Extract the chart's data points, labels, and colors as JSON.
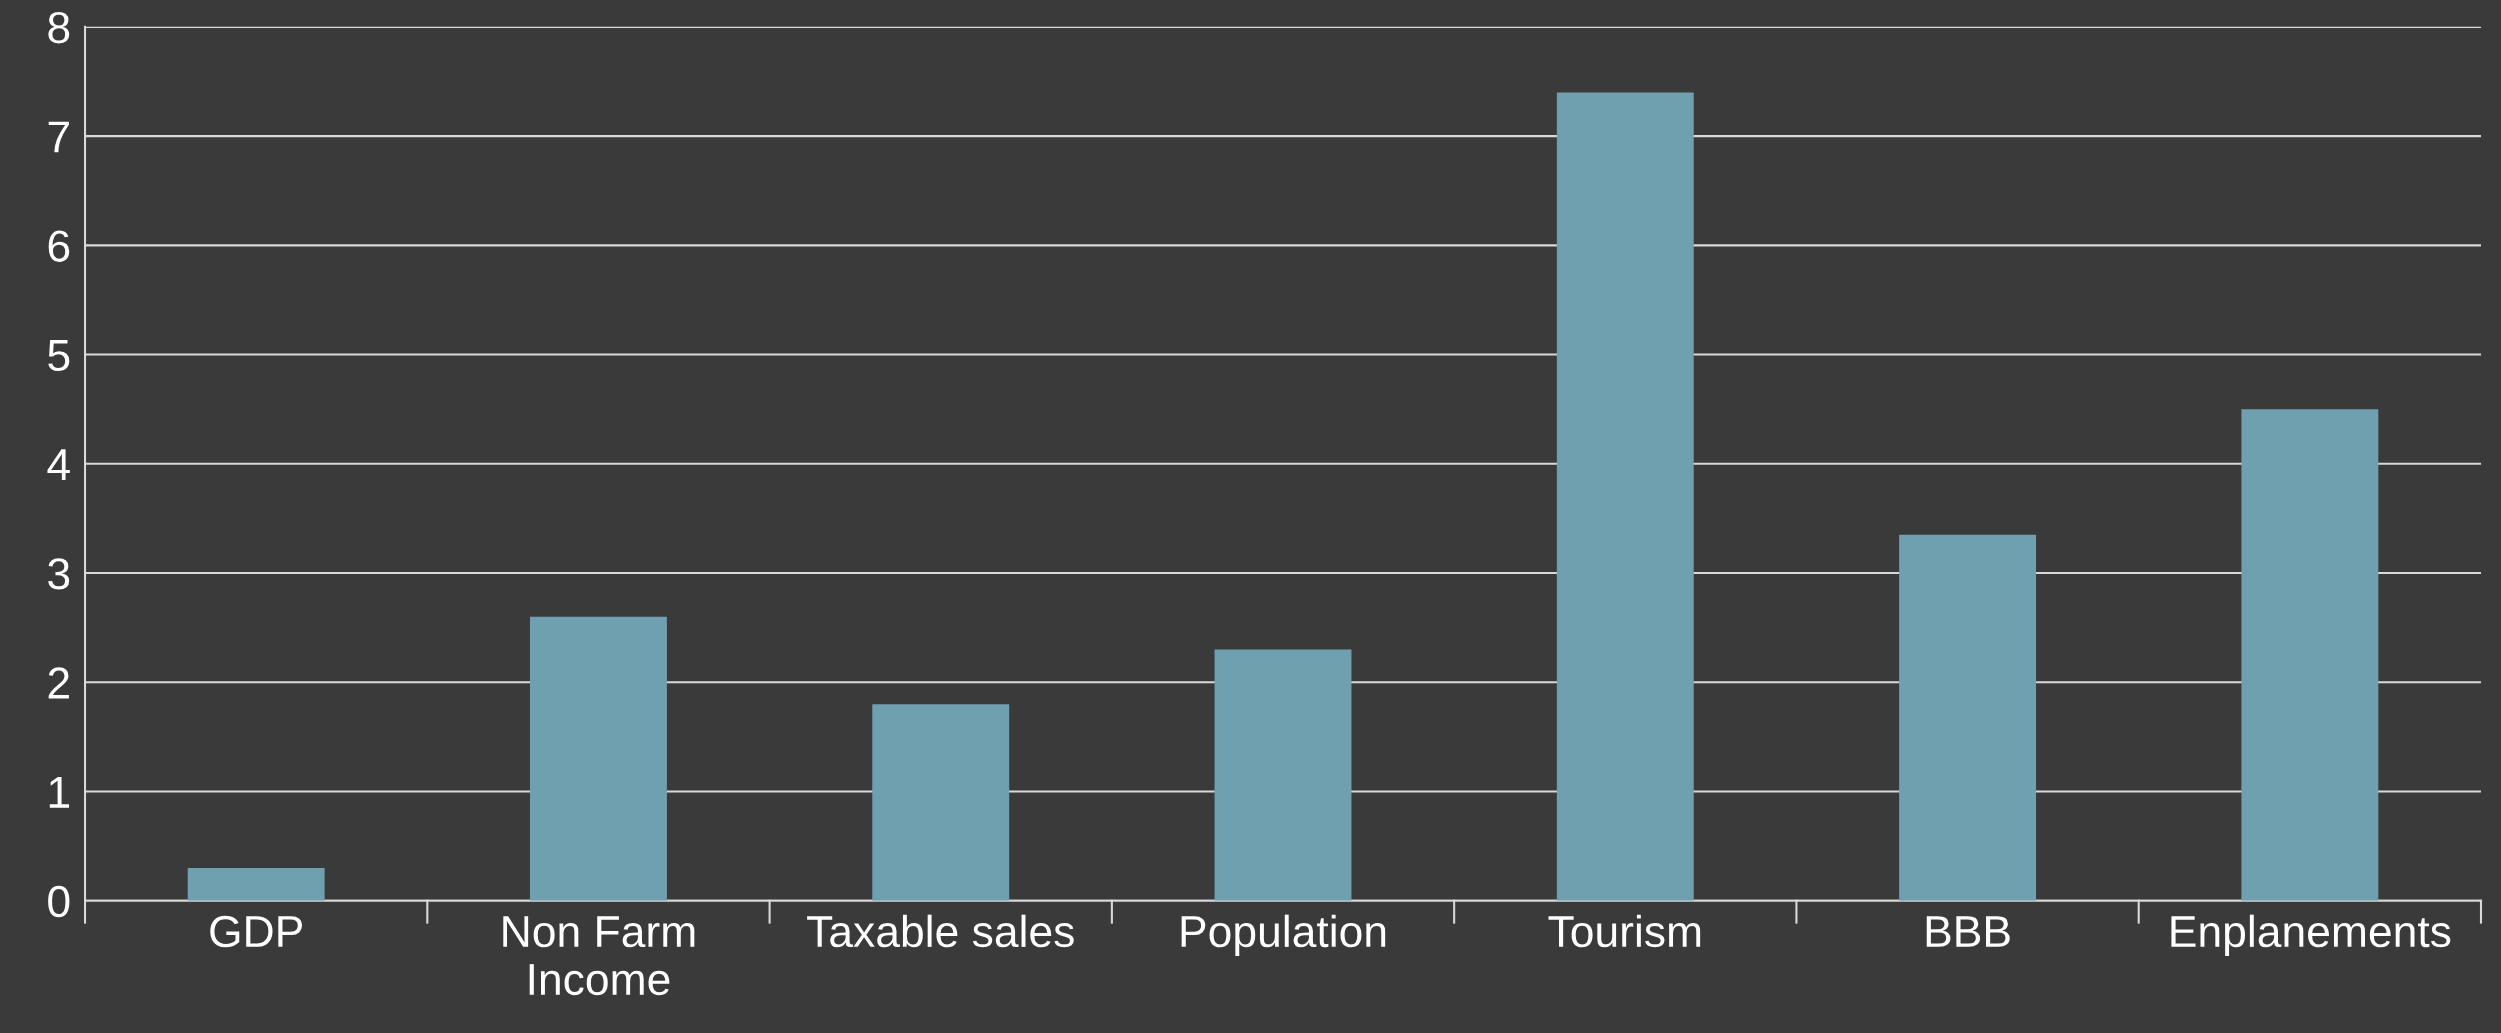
{
  "chart_data": {
    "type": "bar",
    "categories": [
      "GDP",
      "Non Farm\nIncome",
      "Taxable sales",
      "Population",
      "Tourism",
      "BBB",
      "Enplanements"
    ],
    "values": [
      0.3,
      2.6,
      1.8,
      2.3,
      7.4,
      3.35,
      4.5
    ],
    "color": "#6fa0b0",
    "ylim": [
      0,
      8
    ],
    "yticks": [
      0,
      1,
      2,
      3,
      4,
      5,
      6,
      7,
      8
    ],
    "grid": "y",
    "legend": false
  }
}
